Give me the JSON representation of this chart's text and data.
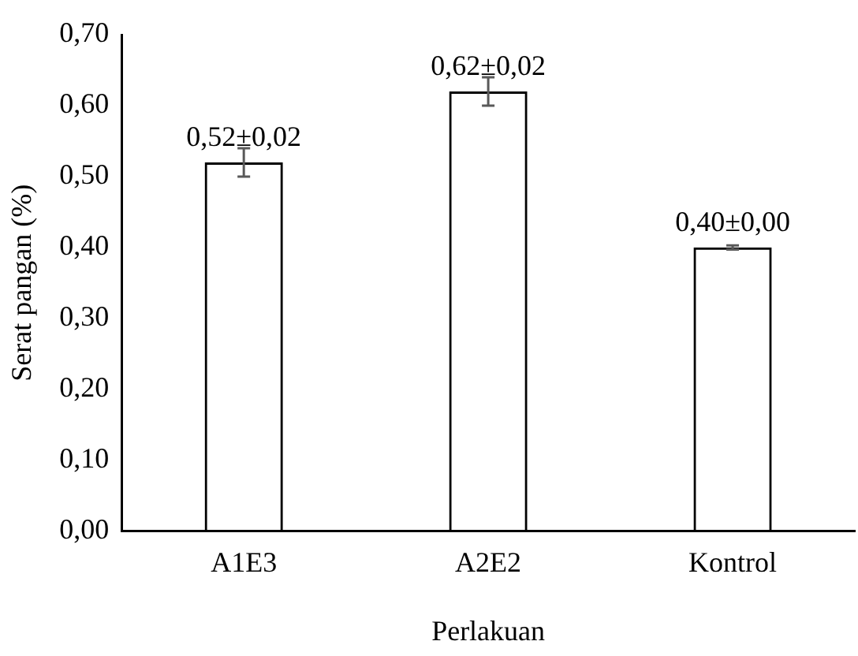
{
  "chart_data": {
    "type": "bar",
    "xlabel": "Perlakuan",
    "ylabel": "Serat pangan (%)",
    "categories": [
      "A1E3",
      "A2E2",
      "Kontrol"
    ],
    "values": [
      0.52,
      0.62,
      0.4
    ],
    "color": "#000000",
    "errors": [
      0.02,
      0.02,
      0.003
    ],
    "value_labels": [
      "0,52±0,02",
      "0,62±0,02",
      "0,40±0,00"
    ],
    "ylim": [
      0,
      0.7
    ],
    "yticks": [
      {
        "value": 0,
        "label": "0,00"
      },
      {
        "value": 0.1,
        "label": "0,10"
      },
      {
        "value": 0.2,
        "label": "0,20"
      },
      {
        "value": 0.3,
        "label": "0,30"
      },
      {
        "value": 0.4,
        "label": "0,40"
      },
      {
        "value": 0.5,
        "label": "0,50"
      },
      {
        "value": 0.6,
        "label": "0,60"
      },
      {
        "value": 0.7,
        "label": "0,70"
      }
    ],
    "grid": false,
    "legend": false
  }
}
